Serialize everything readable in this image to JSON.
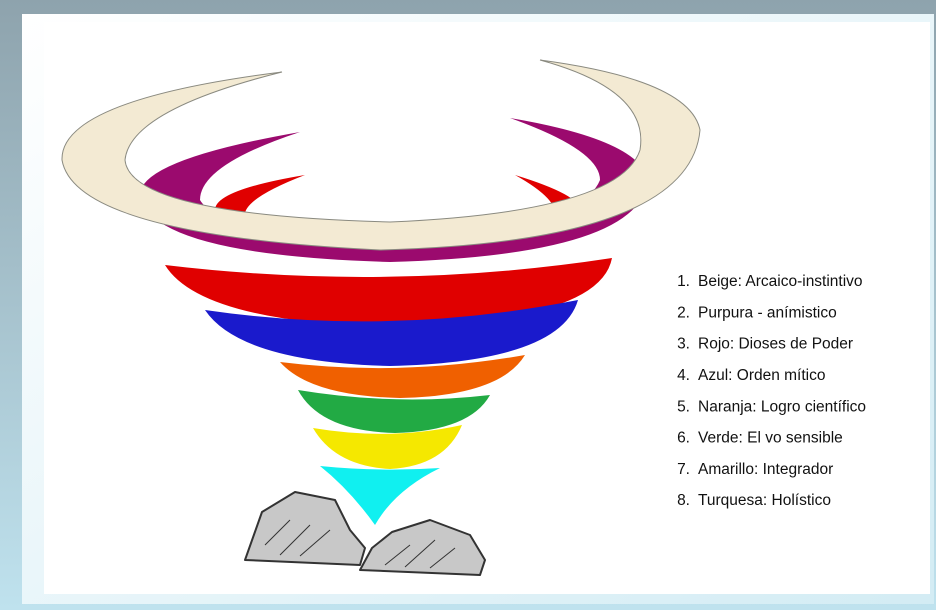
{
  "legend": {
    "items": [
      {
        "number": "1.",
        "label": "Beige: Arcaico-instintivo"
      },
      {
        "number": "2.",
        "label": "Purpura - anímistico"
      },
      {
        "number": "3.",
        "label": "Rojo: Dioses de Poder"
      },
      {
        "number": "4.",
        "label": "Azul: Orden mítico"
      },
      {
        "number": "5.",
        "label": "Naranja: Logro científico"
      },
      {
        "number": "6.",
        "label": "Verde: El vo sensible"
      },
      {
        "number": "7.",
        "label": "Amarillo: Integrador"
      },
      {
        "number": "8.",
        "label": "Turquesa: Holístico"
      }
    ]
  }
}
